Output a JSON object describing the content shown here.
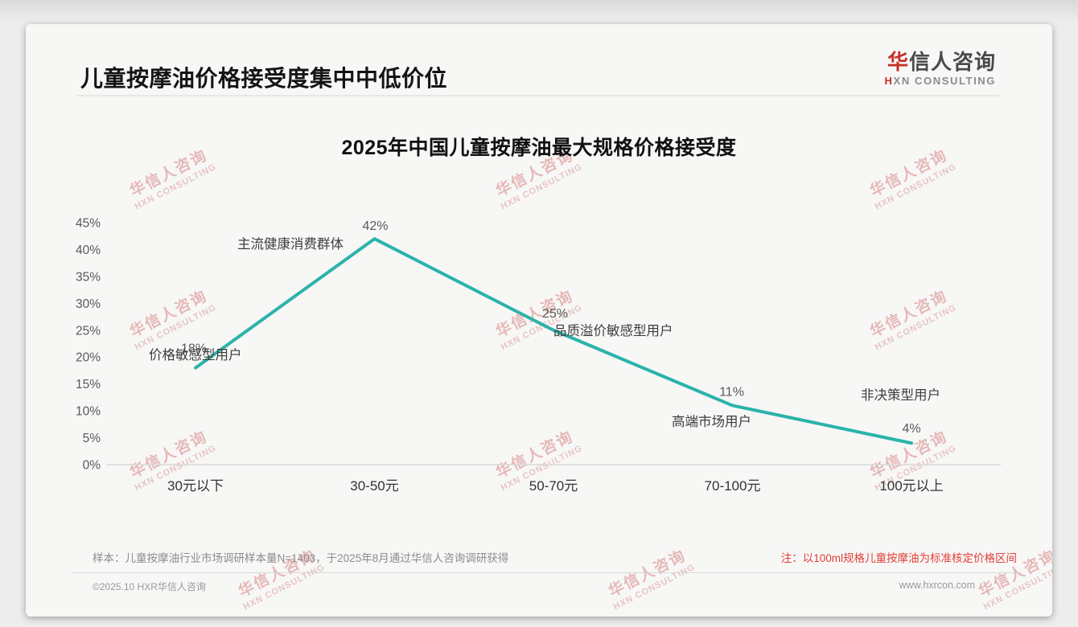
{
  "header": {
    "title": "儿童按摩油价格接受度集中中低价位",
    "logo": {
      "cn_first": "华",
      "cn_rest": "信人咨询",
      "en_first": "H",
      "en_rest": "XN CONSULTING"
    }
  },
  "chart_data": {
    "type": "line",
    "title": "2025年中国儿童按摩油最大规格价格接受度",
    "categories": [
      "30元以下",
      "30-50元",
      "50-70元",
      "70-100元",
      "100元以上"
    ],
    "values": [
      18,
      42,
      25,
      11,
      4
    ],
    "point_labels": [
      "18%",
      "42%",
      "25%",
      "11%",
      "4%"
    ],
    "annotations": [
      "价格敏感型用户",
      "主流健康消费群体",
      "品质溢价敏感型用户",
      "高端市场用户",
      "非决策型用户"
    ],
    "xlabel": "",
    "ylabel": "",
    "ylim": [
      0,
      45
    ],
    "ytick_labels": [
      "45%",
      "40%",
      "35%",
      "30%",
      "25%",
      "20%",
      "15%",
      "10%",
      "5%",
      "0%"
    ],
    "grid": false,
    "legend": "none",
    "line_color": "#2bb3aa"
  },
  "watermark": {
    "cn": "华信人咨询",
    "en": "HXN CONSULTING"
  },
  "footer": {
    "sample_note": "样本：儿童按摩油行业市场调研样本量N=1403，于2025年8月通过华信人咨询调研获得",
    "price_note": "注：以100ml规格儿童按摩油为标准核定价格区间",
    "copyright": "©2025.10 HXR华信人咨询",
    "website": "www.hxrcon.com"
  },
  "colors": {
    "line_teal": "#2bb3aa",
    "note_red": "#e0403a",
    "logo_red": "#c53127",
    "axis_text": "#595959",
    "annotation_text": "#3d3d3d"
  }
}
